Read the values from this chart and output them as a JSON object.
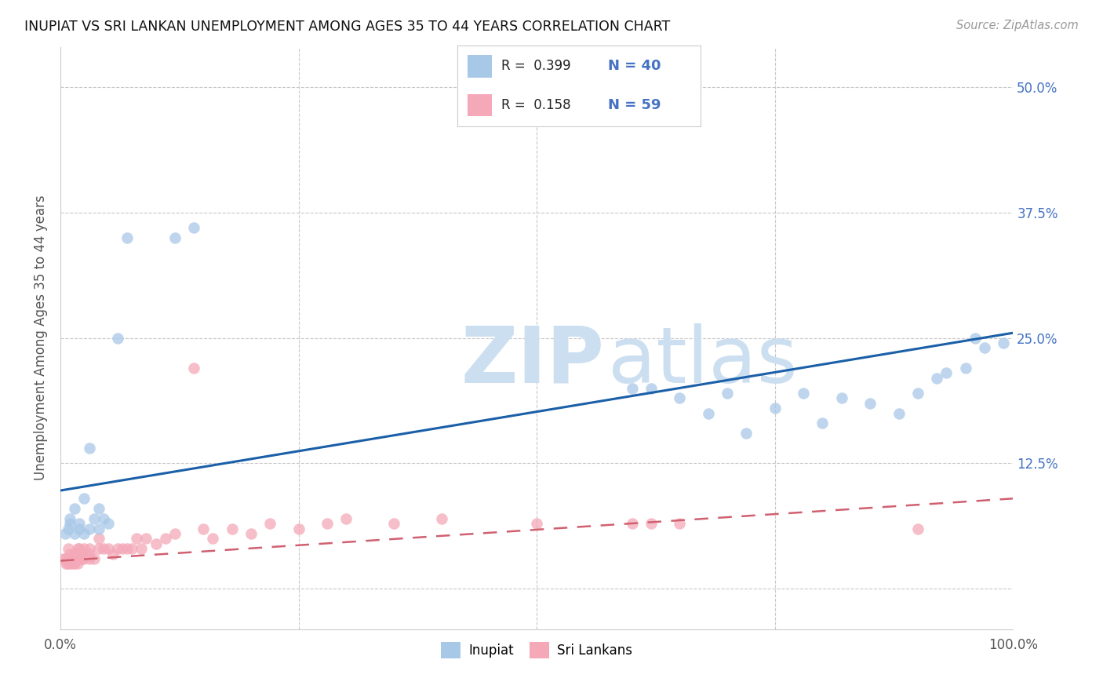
{
  "title": "INUPIAT VS SRI LANKAN UNEMPLOYMENT AMONG AGES 35 TO 44 YEARS CORRELATION CHART",
  "source": "Source: ZipAtlas.com",
  "ylabel": "Unemployment Among Ages 35 to 44 years",
  "xlim": [
    0.0,
    1.0
  ],
  "ylim": [
    -0.04,
    0.54
  ],
  "yticks": [
    0.0,
    0.125,
    0.25,
    0.375,
    0.5
  ],
  "yticklabels_right": [
    "",
    "12.5%",
    "25.0%",
    "37.5%",
    "50.0%"
  ],
  "inupiat_color": "#a8c8e8",
  "srilankans_color": "#f4a8b8",
  "inupiat_line_color": "#1a5fa8",
  "srilankans_line_color": "#d06070",
  "legend_R_inupiat": "0.399",
  "legend_N_inupiat": "40",
  "legend_R_srilankans": "0.158",
  "legend_N_srilankans": "59",
  "inupiat_x": [
    0.005,
    0.008,
    0.01,
    0.01,
    0.015,
    0.015,
    0.02,
    0.02,
    0.025,
    0.025,
    0.03,
    0.03,
    0.035,
    0.04,
    0.04,
    0.045,
    0.05,
    0.06,
    0.07,
    0.12,
    0.14,
    0.6,
    0.62,
    0.65,
    0.68,
    0.7,
    0.72,
    0.75,
    0.78,
    0.8,
    0.82,
    0.85,
    0.88,
    0.9,
    0.92,
    0.93,
    0.95,
    0.96,
    0.97,
    0.99
  ],
  "inupiat_y": [
    0.055,
    0.06,
    0.065,
    0.07,
    0.055,
    0.08,
    0.06,
    0.065,
    0.055,
    0.09,
    0.06,
    0.14,
    0.07,
    0.06,
    0.08,
    0.07,
    0.065,
    0.25,
    0.35,
    0.35,
    0.36,
    0.2,
    0.2,
    0.19,
    0.175,
    0.195,
    0.155,
    0.18,
    0.195,
    0.165,
    0.19,
    0.185,
    0.175,
    0.195,
    0.21,
    0.215,
    0.22,
    0.25,
    0.24,
    0.245
  ],
  "srilankans_x": [
    0.003,
    0.005,
    0.006,
    0.007,
    0.008,
    0.008,
    0.009,
    0.01,
    0.01,
    0.01,
    0.012,
    0.013,
    0.014,
    0.015,
    0.015,
    0.016,
    0.018,
    0.018,
    0.02,
    0.02,
    0.022,
    0.022,
    0.025,
    0.025,
    0.03,
    0.03,
    0.03,
    0.035,
    0.04,
    0.04,
    0.045,
    0.05,
    0.055,
    0.06,
    0.065,
    0.07,
    0.075,
    0.08,
    0.085,
    0.09,
    0.1,
    0.11,
    0.12,
    0.14,
    0.15,
    0.16,
    0.18,
    0.2,
    0.22,
    0.25,
    0.28,
    0.3,
    0.35,
    0.4,
    0.5,
    0.6,
    0.62,
    0.65,
    0.9
  ],
  "srilankans_y": [
    0.03,
    0.03,
    0.025,
    0.025,
    0.03,
    0.04,
    0.03,
    0.03,
    0.025,
    0.035,
    0.025,
    0.03,
    0.03,
    0.025,
    0.035,
    0.03,
    0.025,
    0.04,
    0.03,
    0.04,
    0.03,
    0.035,
    0.03,
    0.04,
    0.03,
    0.04,
    0.035,
    0.03,
    0.04,
    0.05,
    0.04,
    0.04,
    0.035,
    0.04,
    0.04,
    0.04,
    0.04,
    0.05,
    0.04,
    0.05,
    0.045,
    0.05,
    0.055,
    0.22,
    0.06,
    0.05,
    0.06,
    0.055,
    0.065,
    0.06,
    0.065,
    0.07,
    0.065,
    0.07,
    0.065,
    0.065,
    0.065,
    0.065,
    0.06
  ],
  "blue_line_x": [
    0.0,
    1.0
  ],
  "blue_line_y": [
    0.098,
    0.255
  ],
  "pink_line_x": [
    0.0,
    1.0
  ],
  "pink_line_y": [
    0.028,
    0.09
  ]
}
